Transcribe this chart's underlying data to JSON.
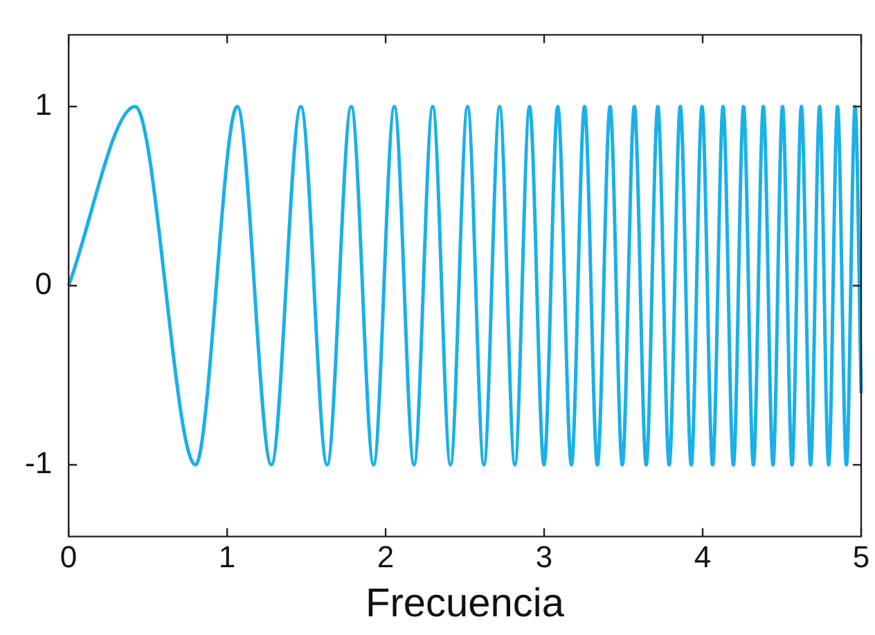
{
  "chart_data": {
    "type": "line",
    "xlabel": "Frecuencia",
    "xlim": [
      0,
      5
    ],
    "xticks": [
      0,
      1,
      2,
      3,
      4,
      5
    ],
    "ylim": [
      -1.4,
      1.4
    ],
    "yticks": [
      -1,
      0,
      1
    ],
    "grid": false,
    "legend": false,
    "marker": "none",
    "line_style": "solid",
    "series": [
      {
        "color": "#1ab0e8",
        "x": [
          0,
          0.42,
          0.8,
          1.064,
          1.279,
          1.465,
          1.631,
          1.783,
          1.924,
          2.055,
          2.179,
          2.297,
          2.409,
          2.517,
          2.62,
          2.719,
          2.815,
          2.908,
          2.999,
          3.086,
          3.172,
          3.255,
          3.336,
          3.416,
          3.493,
          3.569,
          3.644,
          3.717,
          3.789,
          3.859,
          3.928,
          3.996,
          4.063,
          4.129,
          4.194,
          4.258,
          4.32,
          4.383,
          4.444,
          4.504,
          4.564,
          4.623,
          4.681,
          4.738,
          4.795,
          4.851,
          4.907,
          4.962,
          5
        ],
        "values": [
          0,
          1,
          -1,
          1,
          -1,
          1,
          -1,
          1,
          -1,
          1,
          -1,
          1,
          -1,
          1,
          -1,
          1,
          -1,
          1,
          -1,
          1,
          -1,
          1,
          -1,
          1,
          -1,
          1,
          -1,
          1,
          -1,
          1,
          -1,
          1,
          -1,
          1,
          -1,
          1,
          -1,
          1,
          -1,
          1,
          -1,
          1,
          -1,
          1,
          -1,
          1,
          -1,
          1,
          -0.6
        ]
      }
    ]
  }
}
